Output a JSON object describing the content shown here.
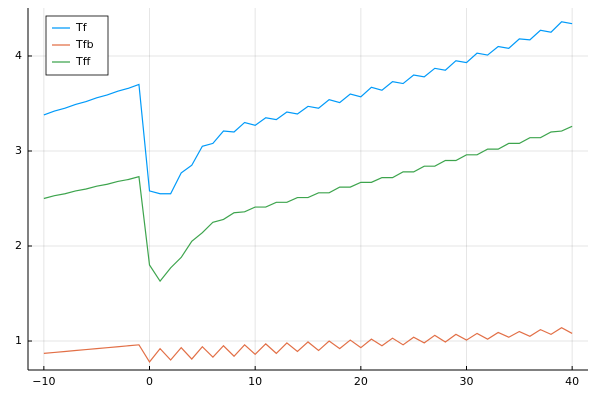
{
  "chart_data": {
    "type": "line",
    "x": [
      -10,
      -9,
      -8,
      -7,
      -6,
      -5,
      -4,
      -3,
      -2,
      -1,
      0,
      1,
      2,
      3,
      4,
      5,
      6,
      7,
      8,
      9,
      10,
      11,
      12,
      13,
      14,
      15,
      16,
      17,
      18,
      19,
      20,
      21,
      22,
      23,
      24,
      25,
      26,
      27,
      28,
      29,
      30,
      31,
      32,
      33,
      34,
      35,
      36,
      37,
      38,
      39,
      40
    ],
    "series": [
      {
        "name": "Tf",
        "color": "#009af9",
        "values": [
          3.38,
          3.42,
          3.45,
          3.49,
          3.52,
          3.56,
          3.59,
          3.63,
          3.66,
          3.7,
          2.58,
          2.55,
          2.55,
          2.77,
          2.85,
          3.05,
          3.08,
          3.21,
          3.2,
          3.3,
          3.27,
          3.35,
          3.33,
          3.41,
          3.39,
          3.47,
          3.45,
          3.54,
          3.51,
          3.6,
          3.57,
          3.67,
          3.64,
          3.73,
          3.71,
          3.8,
          3.78,
          3.87,
          3.85,
          3.95,
          3.93,
          4.03,
          4.01,
          4.1,
          4.08,
          4.18,
          4.17,
          4.27,
          4.25,
          4.36,
          4.34
        ]
      },
      {
        "name": "Tfb",
        "color": "#e26f46",
        "values": [
          0.87,
          0.88,
          0.89,
          0.9,
          0.91,
          0.92,
          0.93,
          0.94,
          0.95,
          0.96,
          0.78,
          0.92,
          0.8,
          0.93,
          0.81,
          0.94,
          0.83,
          0.95,
          0.84,
          0.96,
          0.86,
          0.97,
          0.87,
          0.98,
          0.89,
          0.99,
          0.9,
          1.0,
          0.92,
          1.01,
          0.93,
          1.02,
          0.95,
          1.03,
          0.96,
          1.04,
          0.98,
          1.06,
          0.99,
          1.07,
          1.01,
          1.08,
          1.02,
          1.09,
          1.04,
          1.1,
          1.05,
          1.12,
          1.07,
          1.14,
          1.08
        ]
      },
      {
        "name": "Tff",
        "color": "#3da44d",
        "values": [
          2.5,
          2.53,
          2.55,
          2.58,
          2.6,
          2.63,
          2.65,
          2.68,
          2.7,
          2.73,
          1.8,
          1.63,
          1.77,
          1.88,
          2.05,
          2.14,
          2.25,
          2.28,
          2.35,
          2.36,
          2.41,
          2.41,
          2.46,
          2.46,
          2.51,
          2.51,
          2.56,
          2.56,
          2.62,
          2.62,
          2.67,
          2.67,
          2.72,
          2.72,
          2.78,
          2.78,
          2.84,
          2.84,
          2.9,
          2.9,
          2.96,
          2.96,
          3.02,
          3.02,
          3.08,
          3.08,
          3.14,
          3.14,
          3.2,
          3.21,
          3.26
        ]
      }
    ],
    "xlim": [
      -11.5,
      41.5
    ],
    "ylim": [
      0.695,
      4.505
    ],
    "xticks": [
      {
        "value": -10,
        "label": "−10"
      },
      0,
      10,
      20,
      30,
      40
    ],
    "yticks": [
      1,
      2,
      3,
      4
    ],
    "grid": true,
    "legend": "top-left"
  }
}
